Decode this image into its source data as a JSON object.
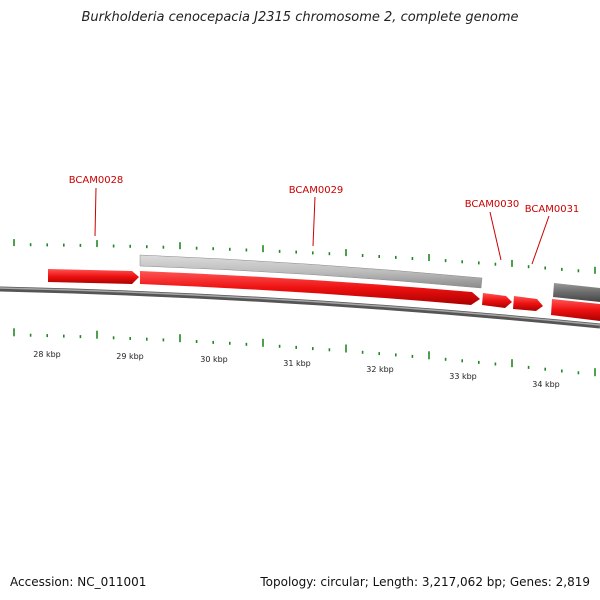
{
  "title": "Burkholderia cenocepacia J2315 chromosome 2, complete genome",
  "footer": {
    "accession": "Accession: NC_011001",
    "summary": "Topology: circular; Length: 3,217,062 bp; Genes: 2,819"
  },
  "colors": {
    "gene_forward": "#ee1111",
    "gene_reverse": "#bdbdbd",
    "gene_dark": "#6b6b6b",
    "backbone": "#7a7a7a",
    "tick": "#228822",
    "label": "#cc0000"
  },
  "scale_labels": [
    "28 kbp",
    "29 kbp",
    "30 kbp",
    "31 kbp",
    "32 kbp",
    "33 kbp",
    "34 kbp"
  ],
  "gene_labels": [
    "BCAM0028",
    "BCAM0029",
    "BCAM0030",
    "BCAM0031"
  ]
}
